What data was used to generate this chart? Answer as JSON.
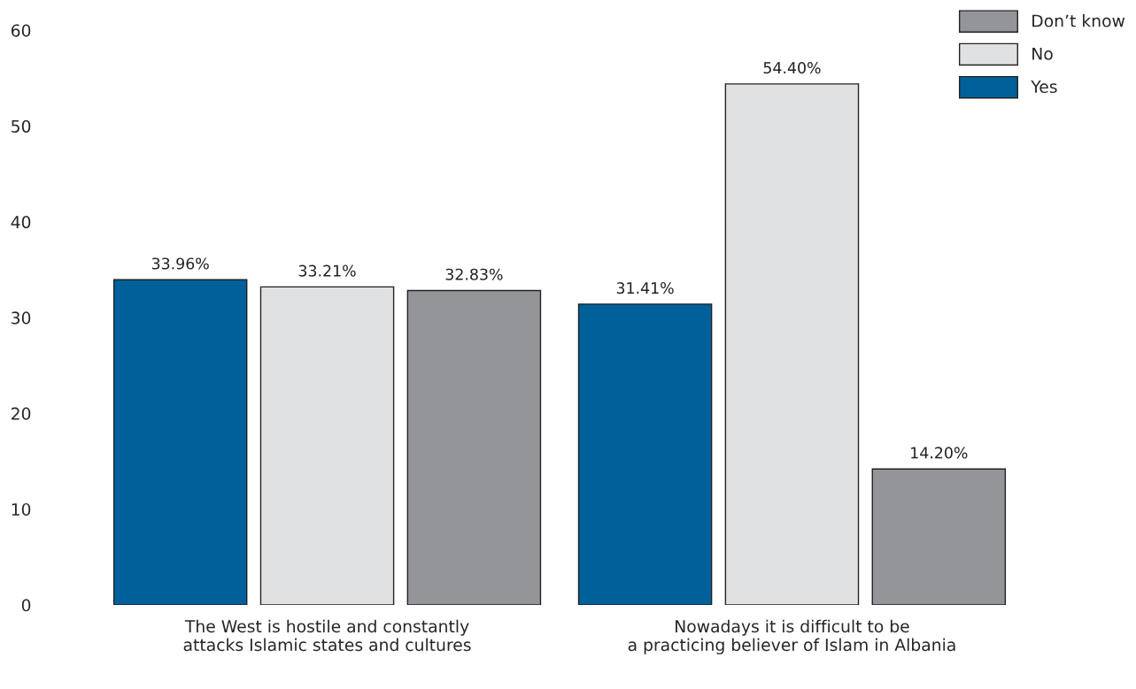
{
  "chart_data": {
    "type": "bar",
    "categories": [
      "The West is hostile and constantly\nattacks Islamic states and cultures",
      "Nowadays it is difficult to be\na practicing believer of Islam in Albania"
    ],
    "series": [
      {
        "name": "Yes",
        "color": "#00609a",
        "values": [
          33.96,
          31.41
        ],
        "value_labels": [
          "33.96%",
          "31.41%"
        ]
      },
      {
        "name": "No",
        "color": "#e0e1e3",
        "values": [
          33.21,
          54.4
        ],
        "value_labels": [
          "33.21%",
          "54.40%"
        ]
      },
      {
        "name": "Don’t know",
        "color": "#939598",
        "values": [
          32.83,
          14.2
        ],
        "value_labels": [
          "32.83%",
          "14.20%"
        ]
      }
    ],
    "ylim": [
      0,
      60
    ],
    "yticks": [
      0,
      10,
      20,
      30,
      40,
      50,
      60
    ],
    "grid": false,
    "legend": "top right"
  }
}
